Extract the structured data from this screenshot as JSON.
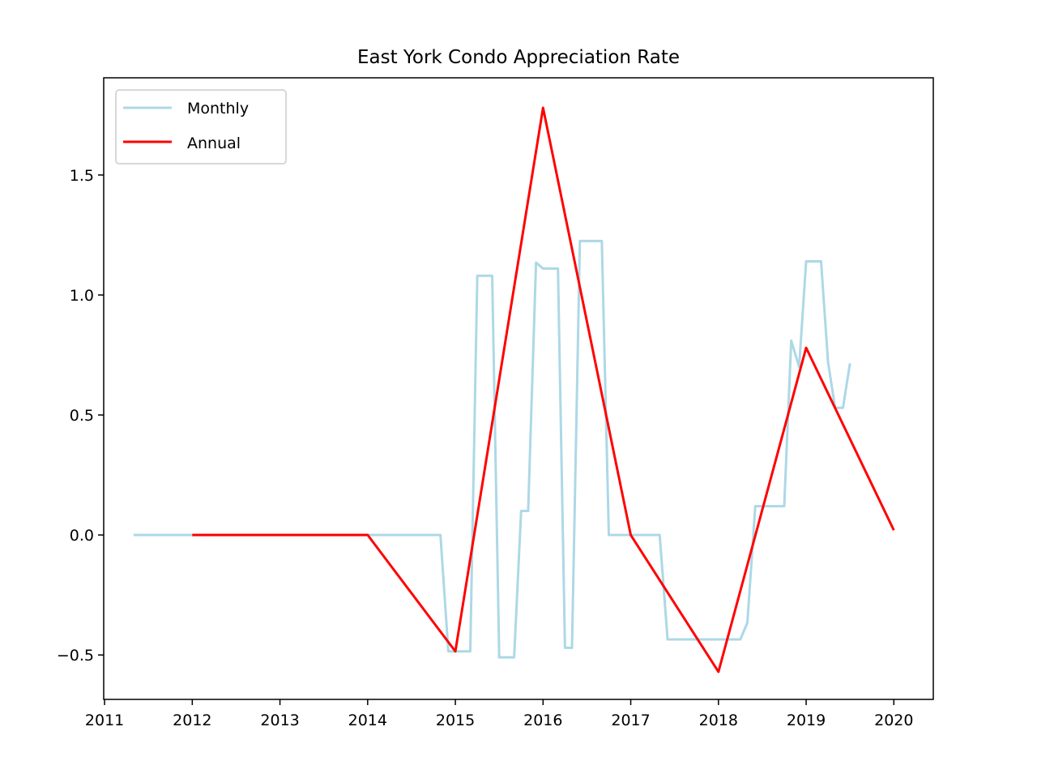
{
  "chart_data": {
    "type": "line",
    "title": "East York Condo Appreciation Rate",
    "xlabel": "",
    "ylabel": "",
    "xlim": [
      2010.99,
      2020.45
    ],
    "ylim": [
      -0.685,
      1.905
    ],
    "x_ticks": [
      2011,
      2012,
      2013,
      2014,
      2015,
      2016,
      2017,
      2018,
      2019,
      2020
    ],
    "y_ticks": [
      -0.5,
      0.0,
      0.5,
      1.0,
      1.5
    ],
    "grid": false,
    "legend": "top-left",
    "series": [
      {
        "name": "Monthly",
        "color": "#add8e6",
        "points": [
          [
            2011.33,
            0.0
          ],
          [
            2011.5,
            0.0
          ],
          [
            2011.75,
            0.0
          ],
          [
            2012.0,
            0.0
          ],
          [
            2012.25,
            0.0
          ],
          [
            2012.5,
            0.0
          ],
          [
            2012.75,
            0.0
          ],
          [
            2013.0,
            0.0
          ],
          [
            2013.25,
            0.0
          ],
          [
            2013.5,
            0.0
          ],
          [
            2013.75,
            0.0
          ],
          [
            2014.0,
            0.0
          ],
          [
            2014.25,
            0.0
          ],
          [
            2014.5,
            0.0
          ],
          [
            2014.75,
            0.0
          ],
          [
            2014.83,
            0.0
          ],
          [
            2014.92,
            -0.485
          ],
          [
            2015.0,
            -0.485
          ],
          [
            2015.08,
            -0.485
          ],
          [
            2015.17,
            -0.485
          ],
          [
            2015.25,
            1.08
          ],
          [
            2015.33,
            1.08
          ],
          [
            2015.42,
            1.08
          ],
          [
            2015.5,
            -0.51
          ],
          [
            2015.58,
            -0.51
          ],
          [
            2015.67,
            -0.51
          ],
          [
            2015.75,
            0.1
          ],
          [
            2015.83,
            0.1
          ],
          [
            2015.92,
            1.135
          ],
          [
            2016.0,
            1.11
          ],
          [
            2016.08,
            1.11
          ],
          [
            2016.17,
            1.11
          ],
          [
            2016.25,
            -0.47
          ],
          [
            2016.33,
            -0.47
          ],
          [
            2016.42,
            1.225
          ],
          [
            2016.5,
            1.225
          ],
          [
            2016.58,
            1.225
          ],
          [
            2016.67,
            1.225
          ],
          [
            2016.75,
            0.0
          ],
          [
            2016.83,
            0.0
          ],
          [
            2016.92,
            0.0
          ],
          [
            2017.0,
            0.0
          ],
          [
            2017.08,
            0.0
          ],
          [
            2017.17,
            0.0
          ],
          [
            2017.25,
            0.0
          ],
          [
            2017.33,
            0.0
          ],
          [
            2017.42,
            -0.435
          ],
          [
            2017.5,
            -0.435
          ],
          [
            2017.58,
            -0.435
          ],
          [
            2017.67,
            -0.435
          ],
          [
            2017.75,
            -0.435
          ],
          [
            2017.83,
            -0.435
          ],
          [
            2017.92,
            -0.435
          ],
          [
            2018.0,
            -0.435
          ],
          [
            2018.08,
            -0.435
          ],
          [
            2018.17,
            -0.435
          ],
          [
            2018.25,
            -0.435
          ],
          [
            2018.33,
            -0.365
          ],
          [
            2018.42,
            0.12
          ],
          [
            2018.5,
            0.12
          ],
          [
            2018.58,
            0.12
          ],
          [
            2018.67,
            0.12
          ],
          [
            2018.75,
            0.12
          ],
          [
            2018.83,
            0.81
          ],
          [
            2018.92,
            0.7
          ],
          [
            2019.0,
            1.14
          ],
          [
            2019.08,
            1.14
          ],
          [
            2019.17,
            1.14
          ],
          [
            2019.25,
            0.72
          ],
          [
            2019.33,
            0.53
          ],
          [
            2019.42,
            0.53
          ],
          [
            2019.5,
            0.715
          ]
        ]
      },
      {
        "name": "Annual",
        "color": "#ff0000",
        "points": [
          [
            2012,
            0.0
          ],
          [
            2013,
            0.0
          ],
          [
            2014,
            0.0
          ],
          [
            2015,
            -0.485
          ],
          [
            2016,
            1.78
          ],
          [
            2017,
            0.0
          ],
          [
            2018,
            -0.57
          ],
          [
            2019,
            0.78
          ],
          [
            2020,
            0.02
          ]
        ]
      }
    ]
  }
}
